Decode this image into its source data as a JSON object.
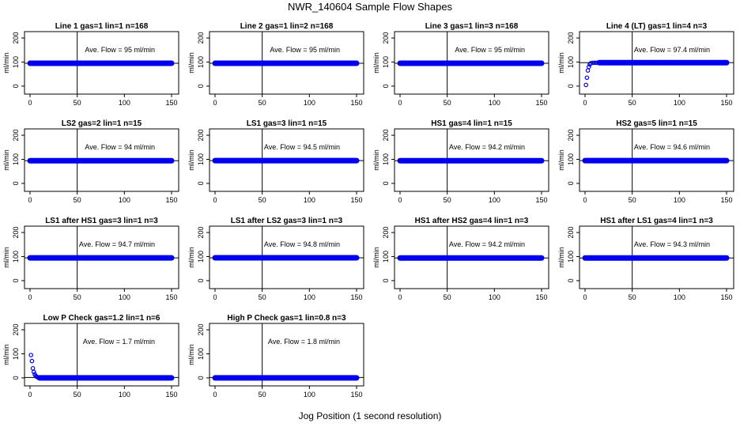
{
  "figure": {
    "title": "NWR_140604  Sample Flow Shapes",
    "xlabel": "Jog Position (1 second resolution)"
  },
  "colors": {
    "points": "#0000ee",
    "axes": "#000000"
  },
  "chart_data": [
    {
      "type": "scatter",
      "title": "Line 1 gas=1 lin=1 n=168",
      "ylabel": "ml/min",
      "annotation": "Ave. Flow =  95  ml/min",
      "xlim": [
        0,
        150
      ],
      "ylim": [
        -20,
        210
      ],
      "xticks": [
        0,
        50,
        100,
        150
      ],
      "yticks": [
        0,
        100,
        200
      ],
      "vline_x": 50,
      "hline_y": 95,
      "points": [],
      "range": {
        "x0": 0,
        "x1": 150,
        "y": 95
      }
    },
    {
      "type": "scatter",
      "title": "Line 2 gas=1 lin=2 n=168",
      "ylabel": "ml/min",
      "annotation": "Ave. Flow =  95  ml/min",
      "xlim": [
        0,
        150
      ],
      "ylim": [
        -20,
        210
      ],
      "xticks": [
        0,
        50,
        100,
        150
      ],
      "yticks": [
        0,
        100,
        200
      ],
      "vline_x": 50,
      "hline_y": 95,
      "points": [],
      "range": {
        "x0": 0,
        "x1": 150,
        "y": 95
      }
    },
    {
      "type": "scatter",
      "title": "Line 3 gas=1 lin=3 n=168",
      "ylabel": "ml/min",
      "annotation": "Ave. Flow =  95  ml/min",
      "xlim": [
        0,
        150
      ],
      "ylim": [
        -20,
        210
      ],
      "xticks": [
        0,
        50,
        100,
        150
      ],
      "yticks": [
        0,
        100,
        200
      ],
      "vline_x": 50,
      "hline_y": 95,
      "points": [],
      "range": {
        "x0": 0,
        "x1": 150,
        "y": 95
      }
    },
    {
      "type": "scatter",
      "title": "Line 4 (LT) gas=1 lin=4 n=3",
      "ylabel": "ml/min",
      "annotation": "Ave. Flow =  97.4  ml/min",
      "xlim": [
        0,
        150
      ],
      "ylim": [
        -20,
        210
      ],
      "xticks": [
        0,
        50,
        100,
        150
      ],
      "yticks": [
        0,
        100,
        200
      ],
      "vline_x": 50,
      "hline_y": 97.4,
      "points": [
        [
          1,
          5
        ],
        [
          2,
          35
        ],
        [
          3,
          65
        ],
        [
          4,
          80
        ],
        [
          5,
          90
        ],
        [
          6,
          95
        ],
        [
          8,
          97
        ],
        [
          10,
          97
        ],
        [
          12,
          97
        ],
        [
          15,
          97
        ]
      ],
      "range": {
        "x0": 15,
        "x1": 150,
        "y": 97.4
      }
    },
    {
      "type": "scatter",
      "title": "LS2 gas=2 lin=1 n=15",
      "ylabel": "ml/min",
      "annotation": "Ave. Flow =  94  ml/min",
      "xlim": [
        0,
        150
      ],
      "ylim": [
        -20,
        210
      ],
      "xticks": [
        0,
        50,
        100,
        150
      ],
      "yticks": [
        0,
        100,
        200
      ],
      "vline_x": 50,
      "hline_y": 94,
      "points": [],
      "range": {
        "x0": 0,
        "x1": 150,
        "y": 94
      }
    },
    {
      "type": "scatter",
      "title": "LS1 gas=3 lin=1 n=15",
      "ylabel": "ml/min",
      "annotation": "Ave. Flow =  94.5  ml/min",
      "xlim": [
        0,
        150
      ],
      "ylim": [
        -20,
        210
      ],
      "xticks": [
        0,
        50,
        100,
        150
      ],
      "yticks": [
        0,
        100,
        200
      ],
      "vline_x": 50,
      "hline_y": 94.5,
      "points": [],
      "range": {
        "x0": 0,
        "x1": 150,
        "y": 94.5
      }
    },
    {
      "type": "scatter",
      "title": "HS1 gas=4 lin=1 n=15",
      "ylabel": "ml/min",
      "annotation": "Ave. Flow =  94.2  ml/min",
      "xlim": [
        0,
        150
      ],
      "ylim": [
        -20,
        210
      ],
      "xticks": [
        0,
        50,
        100,
        150
      ],
      "yticks": [
        0,
        100,
        200
      ],
      "vline_x": 50,
      "hline_y": 94.2,
      "points": [],
      "range": {
        "x0": 0,
        "x1": 150,
        "y": 94.2
      }
    },
    {
      "type": "scatter",
      "title": "HS2 gas=5 lin=1 n=15",
      "ylabel": "ml/min",
      "annotation": "Ave. Flow =  94.6  ml/min",
      "xlim": [
        0,
        150
      ],
      "ylim": [
        -20,
        210
      ],
      "xticks": [
        0,
        50,
        100,
        150
      ],
      "yticks": [
        0,
        100,
        200
      ],
      "vline_x": 50,
      "hline_y": 94.6,
      "points": [],
      "range": {
        "x0": 0,
        "x1": 150,
        "y": 94.6
      }
    },
    {
      "type": "scatter",
      "title": "LS1 after HS1 gas=3 lin=1 n=3",
      "ylabel": "ml/min",
      "annotation": "Ave. Flow =  94.7  ml/min",
      "xlim": [
        0,
        150
      ],
      "ylim": [
        -20,
        210
      ],
      "xticks": [
        0,
        50,
        100,
        150
      ],
      "yticks": [
        0,
        100,
        200
      ],
      "vline_x": 50,
      "hline_y": 94.7,
      "points": [],
      "range": {
        "x0": 0,
        "x1": 150,
        "y": 94.7
      }
    },
    {
      "type": "scatter",
      "title": "LS1 after LS2 gas=3 lin=1 n=3",
      "ylabel": "ml/min",
      "annotation": "Ave. Flow =  94.8  ml/min",
      "xlim": [
        0,
        150
      ],
      "ylim": [
        -20,
        210
      ],
      "xticks": [
        0,
        50,
        100,
        150
      ],
      "yticks": [
        0,
        100,
        200
      ],
      "vline_x": 50,
      "hline_y": 94.8,
      "points": [],
      "range": {
        "x0": 0,
        "x1": 150,
        "y": 94.8
      }
    },
    {
      "type": "scatter",
      "title": "HS1 after HS2 gas=4 lin=1 n=3",
      "ylabel": "ml/min",
      "annotation": "Ave. Flow =  94.2  ml/min",
      "xlim": [
        0,
        150
      ],
      "ylim": [
        -20,
        210
      ],
      "xticks": [
        0,
        50,
        100,
        150
      ],
      "yticks": [
        0,
        100,
        200
      ],
      "vline_x": 50,
      "hline_y": 94.2,
      "points": [],
      "range": {
        "x0": 0,
        "x1": 150,
        "y": 94.2
      }
    },
    {
      "type": "scatter",
      "title": "HS1 after LS1 gas=4 lin=1 n=3",
      "ylabel": "ml/min",
      "annotation": "Ave. Flow =  94.3  ml/min",
      "xlim": [
        0,
        150
      ],
      "ylim": [
        -20,
        210
      ],
      "xticks": [
        0,
        50,
        100,
        150
      ],
      "yticks": [
        0,
        100,
        200
      ],
      "vline_x": 50,
      "hline_y": 94.3,
      "points": [],
      "range": {
        "x0": 0,
        "x1": 150,
        "y": 94.3
      }
    },
    {
      "type": "scatter",
      "title": "Low P Check gas=1.2 lin=1 n=6",
      "ylabel": "ml/min",
      "annotation": "Ave. Flow =  1.7  ml/min",
      "xlim": [
        0,
        150
      ],
      "ylim": [
        -20,
        210
      ],
      "xticks": [
        0,
        50,
        100,
        150
      ],
      "yticks": [
        0,
        100,
        200
      ],
      "vline_x": 50,
      "hline_y": 1.7,
      "points": [
        [
          1,
          95
        ],
        [
          2,
          70
        ],
        [
          3,
          40
        ],
        [
          4,
          25
        ],
        [
          5,
          15
        ],
        [
          6,
          8
        ],
        [
          7,
          5
        ],
        [
          8,
          3
        ],
        [
          9,
          2
        ],
        [
          10,
          1
        ]
      ],
      "range": {
        "x0": 10,
        "x1": 150,
        "y": 0
      }
    },
    {
      "type": "scatter",
      "title": "High P Check gas=1 lin=0.8 n=3",
      "ylabel": "ml/min",
      "annotation": "Ave. Flow =  1.8  ml/min",
      "xlim": [
        0,
        150
      ],
      "ylim": [
        -20,
        210
      ],
      "xticks": [
        0,
        50,
        100,
        150
      ],
      "yticks": [
        0,
        100,
        200
      ],
      "vline_x": 50,
      "hline_y": 1.8,
      "points": [],
      "range": {
        "x0": 0,
        "x1": 150,
        "y": 0
      }
    }
  ]
}
